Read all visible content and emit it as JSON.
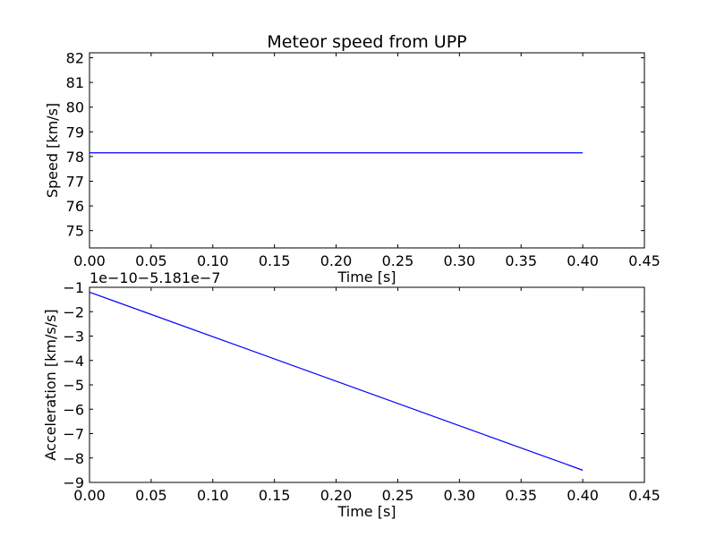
{
  "chart_data": [
    {
      "type": "line",
      "title": "Meteor speed from  UPP",
      "xlabel": "Time [s]",
      "ylabel": "Speed [km/s]",
      "xlim": [
        0.0,
        0.45
      ],
      "ylim": [
        74.3,
        82.2
      ],
      "grid": false,
      "x_ticks": [
        0.0,
        0.05,
        0.1,
        0.15,
        0.2,
        0.25,
        0.3,
        0.35,
        0.4,
        0.45
      ],
      "x_tick_labels": [
        "0.00",
        "0.05",
        "0.10",
        "0.15",
        "0.20",
        "0.25",
        "0.30",
        "0.35",
        "0.40",
        "0.45"
      ],
      "y_ticks": [
        75,
        76,
        77,
        78,
        79,
        80,
        81,
        82
      ],
      "y_tick_labels": [
        "75",
        "76",
        "77",
        "78",
        "79",
        "80",
        "81",
        "82"
      ],
      "series": [
        {
          "color": "#0000ff",
          "x": [
            0.0,
            0.4
          ],
          "y": [
            78.15,
            78.15
          ]
        }
      ]
    },
    {
      "type": "line",
      "xlabel": "Time [s]",
      "ylabel": "Acceleration [km/s/s]",
      "offset_text": "1e−10−5.181e−7",
      "xlim": [
        0.0,
        0.45
      ],
      "ylim": [
        -9,
        -1
      ],
      "grid": false,
      "x_ticks": [
        0.0,
        0.05,
        0.1,
        0.15,
        0.2,
        0.25,
        0.3,
        0.35,
        0.4,
        0.45
      ],
      "x_tick_labels": [
        "0.00",
        "0.05",
        "0.10",
        "0.15",
        "0.20",
        "0.25",
        "0.30",
        "0.35",
        "0.40",
        "0.45"
      ],
      "y_ticks": [
        -1,
        -2,
        -3,
        -4,
        -5,
        -6,
        -7,
        -8,
        -9
      ],
      "y_tick_labels": [
        "−1",
        "−2",
        "−3",
        "−4",
        "−5",
        "−6",
        "−7",
        "−8",
        "−9"
      ],
      "series": [
        {
          "color": "#0000ff",
          "x": [
            0.0,
            0.4
          ],
          "y": [
            -1.2,
            -8.5
          ]
        }
      ]
    }
  ]
}
